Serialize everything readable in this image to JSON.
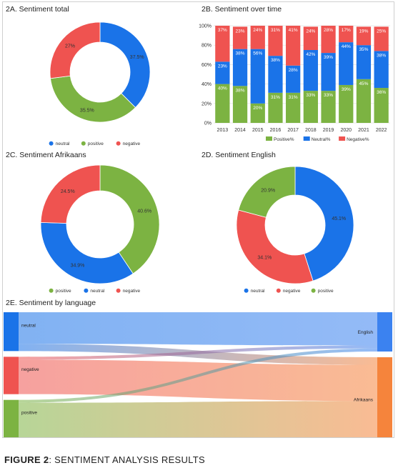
{
  "colors": {
    "neutral": "#1a73e8",
    "positive": "#7cb342",
    "negative": "#ef5350"
  },
  "caption": {
    "bold": "FIGURE 2",
    "rest": ":  SENTIMENT ANALYSIS RESULTS"
  },
  "chart_data": [
    {
      "id": "2A",
      "type": "pie",
      "title": "2A. Sentiment total",
      "slices": [
        {
          "name": "neutral",
          "value": 37.5,
          "label": "37.5%"
        },
        {
          "name": "positive",
          "value": 35.5,
          "label": "35.5%"
        },
        {
          "name": "negative",
          "value": 27.0,
          "label": "27%"
        }
      ],
      "legend": [
        "neutral",
        "positive",
        "negative"
      ]
    },
    {
      "id": "2B",
      "type": "bar",
      "stacked": true,
      "title": "2B. Sentiment over time",
      "categories": [
        "2013",
        "2014",
        "2015",
        "2016",
        "2017",
        "2018",
        "2019",
        "2020",
        "2021",
        "2022"
      ],
      "series": [
        {
          "name": "Positive%",
          "color": "#7cb342",
          "values": [
            40,
            38,
            20,
            31,
            31,
            33,
            33,
            39,
            45,
            36
          ]
        },
        {
          "name": "Neutral%",
          "color": "#1a73e8",
          "values": [
            23,
            38,
            56,
            38,
            28,
            42,
            39,
            44,
            35,
            38
          ]
        },
        {
          "name": "Negative%",
          "color": "#ef5350",
          "values": [
            37,
            23,
            24,
            31,
            41,
            24,
            28,
            17,
            19,
            25
          ]
        }
      ],
      "yticks": [
        "0%",
        "20%",
        "40%",
        "60%",
        "80%",
        "100%"
      ],
      "ylim": [
        0,
        100
      ],
      "legend": [
        "Positive%",
        "Neutral%",
        "Negative%"
      ]
    },
    {
      "id": "2C",
      "type": "pie",
      "title": "2C. Sentiment Afrikaans",
      "slices": [
        {
          "name": "positive",
          "value": 40.6,
          "label": "40.6%"
        },
        {
          "name": "neutral",
          "value": 34.9,
          "label": "34.9%"
        },
        {
          "name": "negative",
          "value": 24.5,
          "label": "24.5%"
        }
      ],
      "legend": [
        "positive",
        "neutral",
        "negative"
      ]
    },
    {
      "id": "2D",
      "type": "pie",
      "title": "2D. Sentiment English",
      "slices": [
        {
          "name": "neutral",
          "value": 45.1,
          "label": "45.1%"
        },
        {
          "name": "negative",
          "value": 34.1,
          "label": "34.1%"
        },
        {
          "name": "positive",
          "value": 20.9,
          "label": "20.9%"
        }
      ],
      "legend": [
        "neutral",
        "negative",
        "positive"
      ]
    },
    {
      "id": "2E",
      "type": "sankey",
      "title": "2E. Sentiment by language",
      "sources": [
        "neutral",
        "negative",
        "positive"
      ],
      "targets": [
        "English",
        "Afrikaans"
      ],
      "flows": [
        {
          "from": "neutral",
          "to": "English",
          "value": 11.0
        },
        {
          "from": "neutral",
          "to": "Afrikaans",
          "value": 2.5
        },
        {
          "from": "negative",
          "to": "English",
          "value": 1.0
        },
        {
          "from": "negative",
          "to": "Afrikaans",
          "value": 12.0
        },
        {
          "from": "positive",
          "to": "English",
          "value": 1.0
        },
        {
          "from": "positive",
          "to": "Afrikaans",
          "value": 12.0
        }
      ]
    }
  ]
}
